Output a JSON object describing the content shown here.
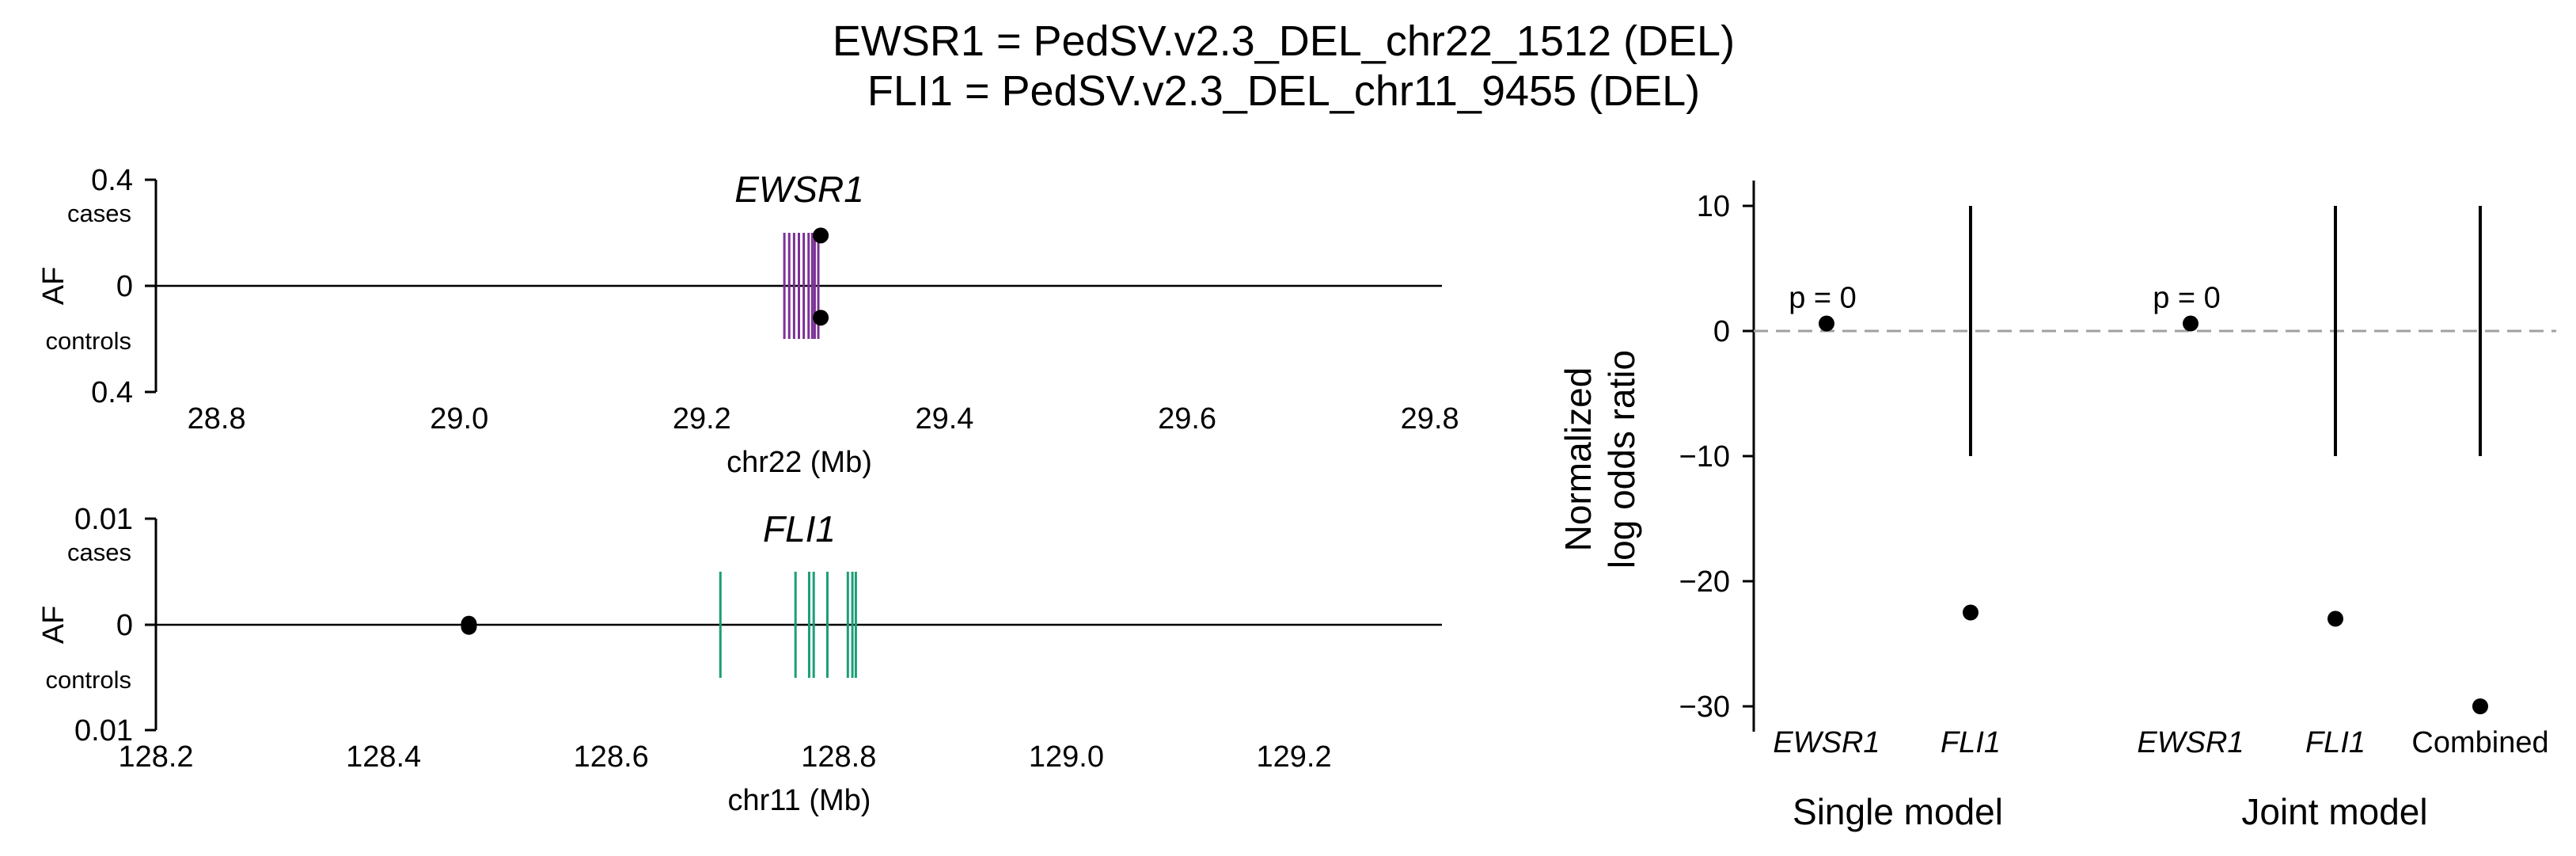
{
  "title": {
    "line1": "EWSR1 = PedSV.v2.3_DEL_chr22_1512 (DEL)",
    "line2": "FLI1 = PedSV.v2.3_DEL_chr11_9455 (DEL)"
  },
  "colors": {
    "ewsr1": "#7b3294",
    "fli1": "#1b9e77",
    "points": "#000000",
    "zero_line": "#a0a0a0"
  },
  "chart_data": [
    {
      "type": "scatter",
      "panel": "ewsr1-locus",
      "gene_label": "EWSR1",
      "xlabel": "chr22 (Mb)",
      "ylabel": "AF",
      "y_top_label": "cases",
      "y_bottom_label": "controls",
      "y_tick_labels": [
        "0.4",
        "0",
        "0.4"
      ],
      "xlim": [
        28.75,
        29.81
      ],
      "ylim": [
        -0.4,
        0.4
      ],
      "x_ticks": [
        "28.8",
        "29.0",
        "29.2",
        "29.4",
        "29.6",
        "29.8"
      ],
      "exon_positions": [
        29.268,
        29.272,
        29.276,
        29.28,
        29.284,
        29.288,
        29.291,
        29.293,
        29.296
      ],
      "points": [
        {
          "x": 29.298,
          "y": 0.19,
          "group": "cases"
        },
        {
          "x": 29.298,
          "y": -0.12,
          "group": "controls"
        }
      ]
    },
    {
      "type": "scatter",
      "panel": "fli1-locus",
      "gene_label": "FLI1",
      "xlabel": "chr11 (Mb)",
      "ylabel": "AF",
      "y_top_label": "cases",
      "y_bottom_label": "controls",
      "y_tick_labels": [
        "0.01",
        "0",
        "0.01"
      ],
      "xlim": [
        128.2,
        129.33
      ],
      "ylim": [
        -0.01,
        0.01
      ],
      "x_ticks": [
        "128.2",
        "128.4",
        "128.6",
        "128.8",
        "129.0",
        "129.2"
      ],
      "exon_positions": [
        128.696,
        128.762,
        128.774,
        128.778,
        128.79,
        128.808,
        128.812,
        128.815
      ],
      "points": [
        {
          "x": 128.475,
          "y": 0.0001,
          "group": "cases"
        },
        {
          "x": 128.475,
          "y": -0.0002,
          "group": "controls"
        }
      ]
    },
    {
      "type": "scatter",
      "panel": "log-odds",
      "ylabel_line1": "Normalized",
      "ylabel_line2": "log odds ratio",
      "ylim": [
        -31.5,
        12
      ],
      "y_ticks": [
        "10",
        "0",
        "−10",
        "−20",
        "−30"
      ],
      "categories": [
        "EWSR1",
        "FLI1",
        "EWSR1",
        "FLI1",
        "Combined"
      ],
      "groups": [
        "Single model",
        "Joint model"
      ],
      "values": [
        0.6,
        -22.5,
        0.6,
        -23.0,
        -30.0
      ],
      "ci_lower": [
        null,
        -10,
        null,
        -10,
        -10
      ],
      "ci_upper": [
        null,
        10,
        null,
        10,
        10
      ],
      "annotations": [
        "p = 0",
        "",
        "p = 0",
        "",
        ""
      ],
      "reference_line": 0
    }
  ]
}
